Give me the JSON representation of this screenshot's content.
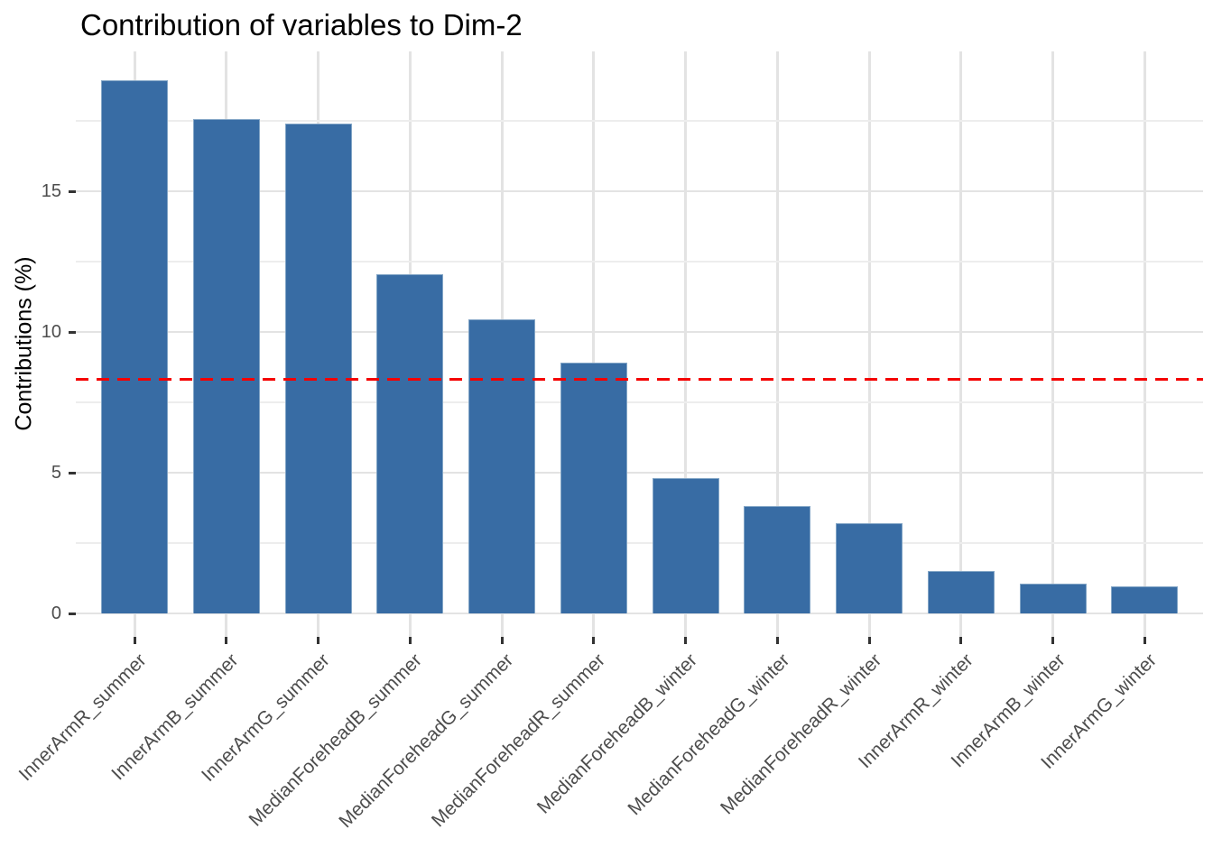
{
  "chart_data": {
    "type": "bar",
    "title": "Contribution of variables to Dim-2",
    "ylabel": "Contributions (%)",
    "xlabel": "",
    "categories": [
      "InnerArmR_summer",
      "InnerArmB_summer",
      "InnerArmG_summer",
      "MedianForeheadB_summer",
      "MedianForeheadG_summer",
      "MedianForeheadR_summer",
      "MedianForeheadB_winter",
      "MedianForeheadG_winter",
      "MedianForeheadR_winter",
      "InnerArmR_winter",
      "InnerArmB_winter",
      "InnerArmG_winter"
    ],
    "values": [
      18.95,
      17.55,
      17.4,
      12.05,
      10.45,
      8.9,
      4.8,
      3.8,
      3.2,
      1.5,
      1.05,
      0.95
    ],
    "yticks": [
      0,
      5,
      10,
      15
    ],
    "yticks_minor": [
      2.5,
      7.5,
      12.5,
      17.5
    ],
    "ylim": [
      0,
      20
    ],
    "x_label_rotation": -45,
    "grid": true,
    "legend": "none",
    "reference_line": {
      "value": 8.33,
      "style": "dashed",
      "color": "#F40000"
    },
    "bar_color": "#386CA4",
    "bar_border_color": "#82A5C6",
    "grid_major_color": "#E3E3E3",
    "grid_minor_color": "#EDEDED",
    "background_color": "#FFFFFF",
    "tick_label_color": "#4D4D4D",
    "title_color": "#000000"
  }
}
